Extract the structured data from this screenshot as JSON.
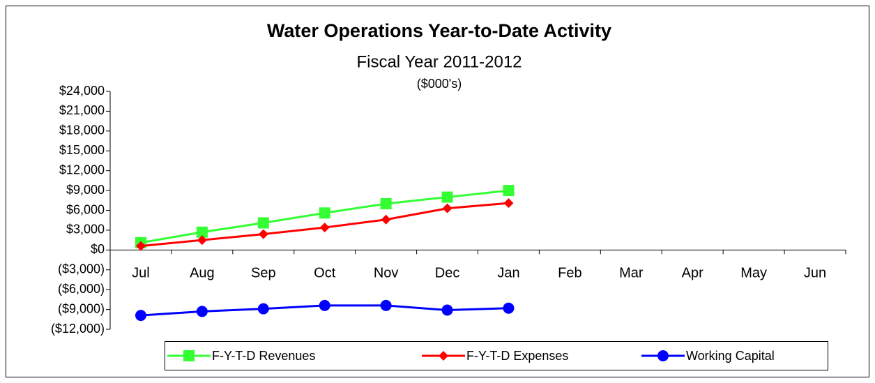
{
  "chart_data": {
    "type": "line",
    "title": "Water Operations  Year-to-Date Activity",
    "subtitle": "Fiscal Year 2011-2012",
    "annotation": "($000's)",
    "categories": [
      "Jul",
      "Aug",
      "Sep",
      "Oct",
      "Nov",
      "Dec",
      "Jan",
      "Feb",
      "Mar",
      "Apr",
      "May",
      "Jun"
    ],
    "series": [
      {
        "name": "F-Y-T-D Revenues",
        "color": "#33ff33",
        "marker": "square",
        "values": [
          1100,
          2700,
          4100,
          5600,
          7000,
          8000,
          9000,
          null,
          null,
          null,
          null,
          null
        ]
      },
      {
        "name": "F-Y-T-D Expenses",
        "color": "#ff0000",
        "marker": "diamond",
        "values": [
          600,
          1500,
          2400,
          3400,
          4600,
          6300,
          7100,
          null,
          null,
          null,
          null,
          null
        ]
      },
      {
        "name": "Working Capital",
        "color": "#0000ff",
        "marker": "circle",
        "values": [
          -9900,
          -9300,
          -8900,
          -8400,
          -8400,
          -9100,
          -8800,
          null,
          null,
          null,
          null,
          null
        ]
      }
    ],
    "ylim": [
      -12000,
      24000
    ],
    "yticks": [
      {
        "value": -12000,
        "label": "($12,000)"
      },
      {
        "value": -9000,
        "label": "($9,000)"
      },
      {
        "value": -6000,
        "label": "($6,000)"
      },
      {
        "value": -3000,
        "label": "($3,000)"
      },
      {
        "value": 0,
        "label": "$0"
      },
      {
        "value": 3000,
        "label": "$3,000"
      },
      {
        "value": 6000,
        "label": "$6,000"
      },
      {
        "value": 9000,
        "label": "$9,000"
      },
      {
        "value": 12000,
        "label": "$12,000"
      },
      {
        "value": 15000,
        "label": "$15,000"
      },
      {
        "value": 18000,
        "label": "$18,000"
      },
      {
        "value": 21000,
        "label": "$21,000"
      },
      {
        "value": 24000,
        "label": "$24,000"
      }
    ],
    "grid": false,
    "legend": "bottom"
  }
}
